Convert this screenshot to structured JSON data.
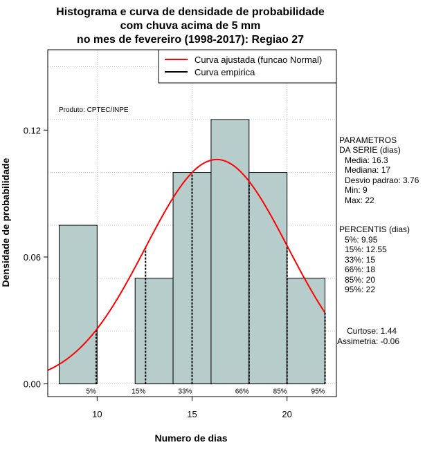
{
  "chart_data": {
    "type": "bar",
    "title_lines": [
      "Histograma e curva de densidade de probabilidade",
      "com chuva acima de 5 mm",
      "no mes de fevereiro (1998-2017): Regiao 27"
    ],
    "xlabel": "Numero de dias",
    "ylabel": "Densidade de probabilidade",
    "xlim": [
      7.4,
      22.6
    ],
    "ylim": [
      -0.006,
      0.158
    ],
    "x_ticks": [
      10,
      15,
      20
    ],
    "y_ticks": [
      0.0,
      0.06,
      0.12
    ],
    "x_tick_labels": [
      "10",
      "15",
      "20"
    ],
    "y_tick_labels": [
      "0.00",
      "0.06",
      "0.12"
    ],
    "grid": true,
    "bins": [
      {
        "start": 8,
        "end": 10,
        "density": 0.075
      },
      {
        "start": 10,
        "end": 12,
        "density": 0.0
      },
      {
        "start": 12,
        "end": 14,
        "density": 0.05
      },
      {
        "start": 14,
        "end": 16,
        "density": 0.1
      },
      {
        "start": 16,
        "end": 18,
        "density": 0.125
      },
      {
        "start": 18,
        "end": 20,
        "density": 0.1
      },
      {
        "start": 20,
        "end": 22,
        "density": 0.05
      }
    ],
    "normal_curve": {
      "mean": 16.3,
      "sd": 3.76
    },
    "percentile_lines": [
      {
        "label": "5%",
        "x": 9.95
      },
      {
        "label": "15%",
        "x": 12.55
      },
      {
        "label": "33%",
        "x": 15
      },
      {
        "label": "66%",
        "x": 18
      },
      {
        "label": "85%",
        "x": 20
      },
      {
        "label": "95%",
        "x": 22
      }
    ],
    "legend": {
      "placement": "top-right",
      "entries": [
        {
          "label": "Curva ajustada (funcao Normal)",
          "color": "#ff0000"
        },
        {
          "label": "Curva empirica",
          "color": "#000000"
        }
      ]
    },
    "colors": {
      "bar_fill": "#b6cdcb",
      "curve": "#ff0000",
      "empirical": "#000000"
    },
    "credit": "Produto: CPTEC/INPE"
  },
  "stats": {
    "parametros_header": [
      "PARAMETROS",
      "DA SERIE (dias)"
    ],
    "parametros": [
      "Media: 16.3",
      "Mediana: 17",
      "Desvio padrao: 3.76",
      "Min: 9",
      "Max: 22"
    ],
    "percentis_header": "PERCENTIS (dias)",
    "percentis": [
      "5%: 9.95",
      "15%: 12.55",
      "33%: 15",
      "66%: 18",
      "85%: 20",
      "95%: 22"
    ],
    "curtose": "Curtose: 1.44",
    "assimetria": "Assimetria: -0.06"
  }
}
